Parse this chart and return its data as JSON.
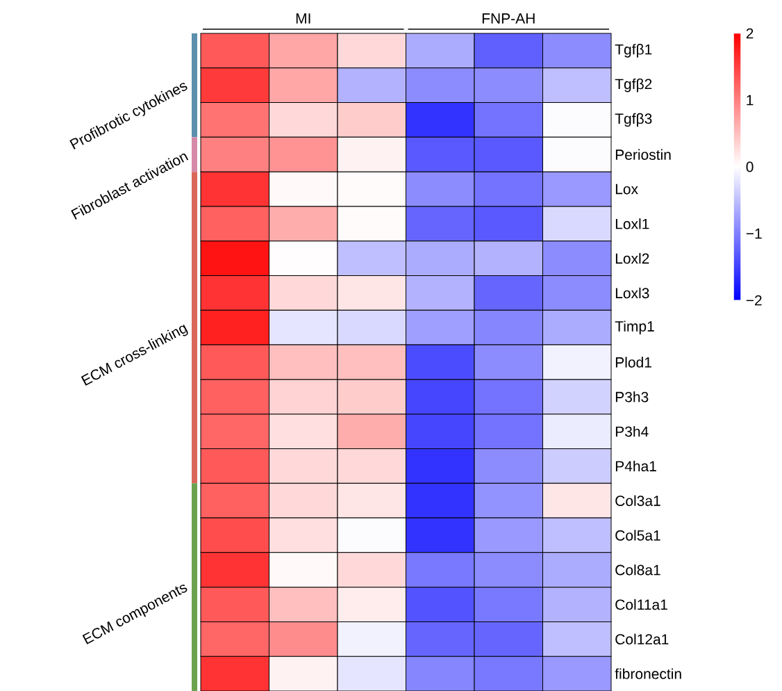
{
  "chart_data": {
    "type": "heatmap",
    "annotations": [
      "MI",
      "FNP-AH",
      "Profibrotic cytokines",
      "Fibroblast activation",
      "ECM cross-linking",
      "ECM components"
    ],
    "categories": [
      null,
      null,
      null,
      null,
      null,
      null
    ],
    "y_categories": [
      "Tgfβ1",
      "Tgfβ2",
      "Tgfβ3",
      "Periostin",
      "Lox",
      "Loxl1",
      "Loxl2",
      "Loxl3",
      "Timp1",
      "Plod1",
      "P3h3",
      "P3h4",
      "P4ha1",
      "Col3a1",
      "Col5a1",
      "Col8a1",
      "Col11a1",
      "Col12a1",
      "fibronectin"
    ],
    "cells": [
      [
        1.3,
        0.7,
        0.3,
        -0.65,
        -1.25,
        -0.9
      ],
      [
        1.55,
        0.7,
        -0.6,
        -0.9,
        -0.9,
        -0.5
      ],
      [
        1.1,
        0.3,
        0.4,
        -1.6,
        -1.1,
        -0.02
      ],
      [
        1.0,
        0.85,
        0.1,
        -1.3,
        -1.3,
        -0.02
      ],
      [
        1.6,
        0.05,
        0.03,
        -0.9,
        -1.1,
        -0.8
      ],
      [
        1.25,
        0.65,
        0.03,
        -1.2,
        -1.3,
        -0.3
      ],
      [
        1.85,
        0.02,
        -0.5,
        -0.65,
        -0.6,
        -0.9
      ],
      [
        1.6,
        0.3,
        0.2,
        -0.6,
        -1.2,
        -0.9
      ],
      [
        1.75,
        -0.2,
        -0.3,
        -0.75,
        -0.95,
        -0.65
      ],
      [
        1.3,
        0.5,
        0.5,
        -1.4,
        -0.9,
        -0.1
      ],
      [
        1.25,
        0.35,
        0.4,
        -1.45,
        -1.1,
        -0.35
      ],
      [
        1.2,
        0.25,
        0.65,
        -1.45,
        -1.1,
        -0.15
      ],
      [
        1.3,
        0.3,
        0.3,
        -1.6,
        -0.9,
        -0.4
      ],
      [
        1.25,
        0.3,
        0.2,
        -1.6,
        -0.85,
        0.2
      ],
      [
        1.4,
        0.25,
        -0.02,
        -1.6,
        -0.8,
        -0.5
      ],
      [
        1.6,
        0.05,
        0.3,
        -1.05,
        -0.9,
        -0.65
      ],
      [
        1.3,
        0.5,
        0.15,
        -1.35,
        -1.05,
        -0.6
      ],
      [
        1.2,
        0.9,
        -0.1,
        -1.2,
        -1.2,
        -0.5
      ],
      [
        1.6,
        0.1,
        -0.2,
        -0.95,
        -1.05,
        -0.8
      ]
    ],
    "tick_labels": "y",
    "clim": [
      -2,
      2
    ],
    "cticks": [
      {
        "value": -2,
        "label": "−2"
      },
      {
        "value": -1,
        "label": "−1"
      },
      0,
      1,
      2
    ]
  }
}
